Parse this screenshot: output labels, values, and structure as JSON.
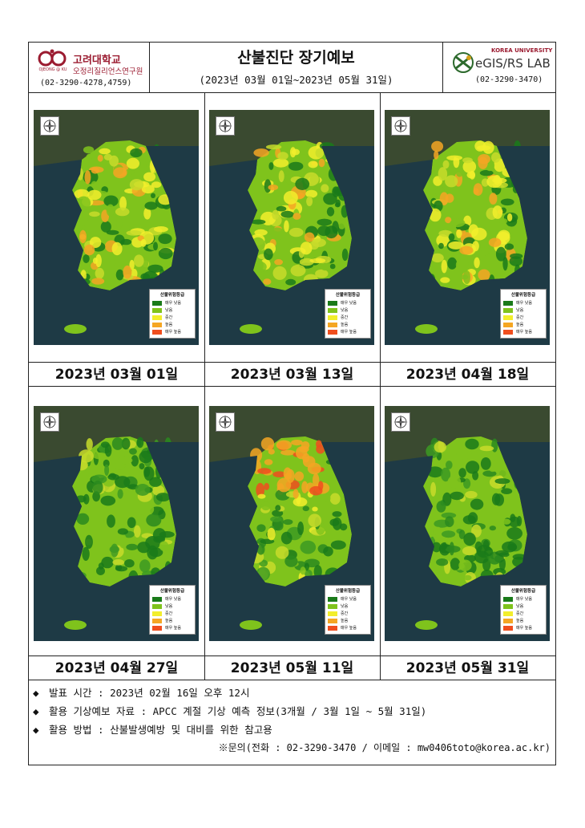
{
  "header": {
    "title": "산불진단 장기예보",
    "period": "(2023년 03월 01일~2023년 05월 31일)",
    "left_org": {
      "name": "고려대학교",
      "sub": "오정리질리언스연구원",
      "phone": "(02-3290-4278,4759)",
      "logo_text": "OJEONG @ KU"
    },
    "right_org": {
      "univ": "KOREA UNIVERSITY",
      "name": "eGIS/RS LAB",
      "phone": "(02-3290-3470)"
    }
  },
  "legend": {
    "title": "산불위험등급",
    "items": [
      {
        "label": "매우 낮음",
        "color": "#1a7a1a"
      },
      {
        "label": "낮음",
        "color": "#7fc31c"
      },
      {
        "label": "중간",
        "color": "#f2ee2c"
      },
      {
        "label": "높음",
        "color": "#f5a623"
      },
      {
        "label": "매우 높음",
        "color": "#f04e1e"
      }
    ]
  },
  "maps": [
    {
      "date": "2023년 03월 01일",
      "risk": "moderate"
    },
    {
      "date": "2023년 03월 13일",
      "risk": "moderate"
    },
    {
      "date": "2023년 04월 18일",
      "risk": "moderate"
    },
    {
      "date": "2023년 04월 27일",
      "risk": "low"
    },
    {
      "date": "2023년 05월 11일",
      "risk": "high-north"
    },
    {
      "date": "2023년 05월 31일",
      "risk": "low"
    }
  ],
  "notes": [
    "발표 시간 : 2023년 02월 16일 오후 12시",
    "활용 기상예보 자료 : APCC 계절 기상 예측 정보(3개월 / 3월 1일 ~ 5월 31일)",
    "활용 방법 : 산불발생예방 및 대비를 위한 참고용"
  ],
  "contact": "※문의(전화 : 02-3290-3470 / 이메일 : mw0406toto@korea.ac.kr)",
  "bullet": "◆"
}
